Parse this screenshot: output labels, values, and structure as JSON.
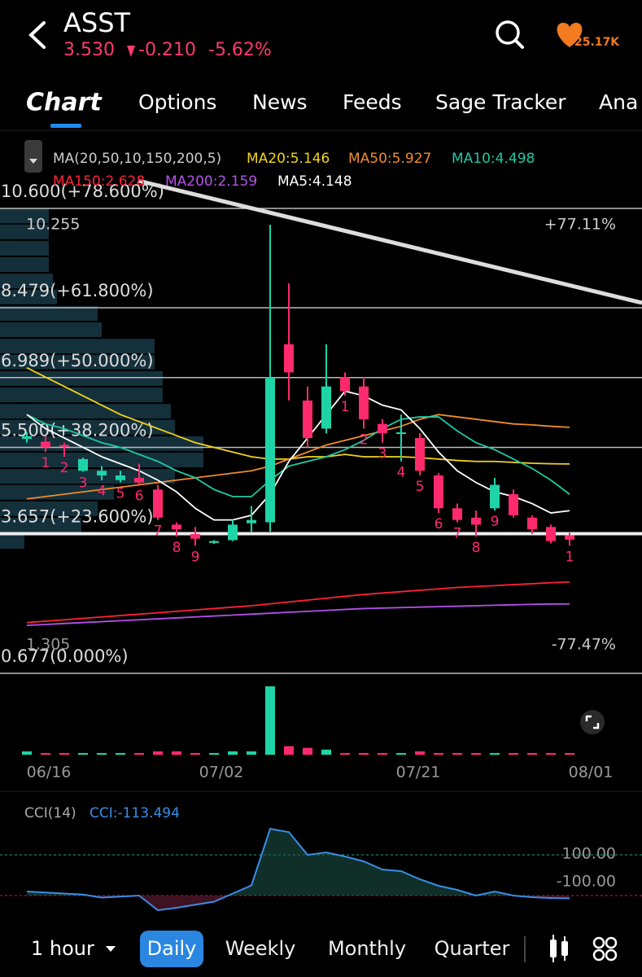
{
  "header": {
    "symbol": "ASST",
    "price": "3.530",
    "change": "-0.210",
    "change_pct": "-5.62%",
    "followers": "25.17K"
  },
  "tabs": [
    "Chart",
    "Options",
    "News",
    "Feeds",
    "Sage Tracker",
    "Ana"
  ],
  "chart": {
    "type": "candlestick",
    "ma_title": "MA(20,50,10,150,200,5)",
    "ma_lines": [
      {
        "label": "MA20:5.146",
        "color": "#f2d31b",
        "values": [
          7.2,
          7.0,
          6.8,
          6.6,
          6.4,
          6.2,
          6.05,
          5.9,
          5.75,
          5.6,
          5.5,
          5.4,
          5.3,
          5.25,
          5.25,
          5.3,
          5.3,
          5.35,
          5.3,
          5.3,
          5.3,
          5.28,
          5.25,
          5.22,
          5.2,
          5.2,
          5.18,
          5.16,
          5.15,
          5.146
        ]
      },
      {
        "label": "MA50:5.927",
        "color": "#f28b2c",
        "values": [
          4.4,
          4.45,
          4.5,
          4.55,
          4.6,
          4.65,
          4.7,
          4.75,
          4.8,
          4.85,
          4.9,
          4.95,
          5.0,
          5.1,
          5.25,
          5.4,
          5.55,
          5.65,
          5.75,
          5.85,
          5.95,
          6.1,
          6.2,
          6.15,
          6.1,
          6.05,
          6.0,
          5.98,
          5.95,
          5.927
        ]
      },
      {
        "label": "MA10:4.498",
        "color": "#1fc9a2",
        "values": [
          6.2,
          6.0,
          5.9,
          5.75,
          5.6,
          5.5,
          5.35,
          5.2,
          5.0,
          4.85,
          4.6,
          4.45,
          4.45,
          4.8,
          5.1,
          5.2,
          5.3,
          5.45,
          5.65,
          5.9,
          6.1,
          6.15,
          6.15,
          5.85,
          5.6,
          5.45,
          5.25,
          5.05,
          4.8,
          4.498
        ]
      },
      {
        "label": "MA150:2.628",
        "color": "#ff2238",
        "values": [
          1.76,
          1.79,
          1.82,
          1.85,
          1.88,
          1.91,
          1.94,
          1.97,
          2.0,
          2.03,
          2.06,
          2.09,
          2.12,
          2.16,
          2.2,
          2.24,
          2.28,
          2.32,
          2.36,
          2.39,
          2.42,
          2.45,
          2.48,
          2.51,
          2.53,
          2.55,
          2.57,
          2.59,
          2.61,
          2.628
        ]
      },
      {
        "label": "MA200:2.159",
        "color": "#b452ea",
        "values": [
          1.7,
          1.72,
          1.74,
          1.76,
          1.78,
          1.8,
          1.82,
          1.84,
          1.86,
          1.88,
          1.9,
          1.92,
          1.94,
          1.96,
          1.98,
          2.0,
          2.02,
          2.04,
          2.06,
          2.07,
          2.08,
          2.09,
          2.1,
          2.11,
          2.12,
          2.13,
          2.14,
          2.15,
          2.155,
          2.159
        ]
      },
      {
        "label": "MA5:4.148",
        "color": "#ffffff",
        "values": [
          6.2,
          5.9,
          5.7,
          5.5,
          5.3,
          5.15,
          5.0,
          4.8,
          4.55,
          4.2,
          3.95,
          3.95,
          4.05,
          4.5,
          5.2,
          5.7,
          6.2,
          6.7,
          6.6,
          6.4,
          6.3,
          5.9,
          5.4,
          5.0,
          4.75,
          4.55,
          4.45,
          4.3,
          4.1,
          4.148
        ]
      }
    ],
    "fib_levels": [
      {
        "value": 10.6,
        "label": "10.600(+78.600%)"
      },
      {
        "value": 8.479,
        "label": "8.479(+61.800%)"
      },
      {
        "value": 6.989,
        "label": "6.989(+50.000%)"
      },
      {
        "value": 5.5,
        "label": "5.500(+38.200%)"
      },
      {
        "value": 3.657,
        "label": "3.657(+23.600%)"
      },
      {
        "value": 0.677,
        "label": "0.677(0.000%)"
      }
    ],
    "high": {
      "value": 10.255,
      "pct": "+77.11%"
    },
    "low": {
      "value": 1.305,
      "pct": "-77.47%"
    },
    "candles": [
      {
        "o": 5.68,
        "h": 5.82,
        "l": 5.6,
        "c": 5.74
      },
      {
        "o": 5.62,
        "h": 5.75,
        "l": 5.4,
        "c": 5.5,
        "label": "1"
      },
      {
        "o": 5.55,
        "h": 5.6,
        "l": 5.3,
        "c": 5.52,
        "label": "2"
      },
      {
        "o": 5.0,
        "h": 5.28,
        "l": 4.98,
        "c": 5.25,
        "label": "3"
      },
      {
        "o": 4.9,
        "h": 5.1,
        "l": 4.8,
        "c": 5.0,
        "label": "4"
      },
      {
        "o": 4.8,
        "h": 5.0,
        "l": 4.75,
        "c": 4.9,
        "label": "5"
      },
      {
        "o": 4.85,
        "h": 5.15,
        "l": 4.7,
        "c": 4.75,
        "label": "6"
      },
      {
        "o": 4.6,
        "h": 4.7,
        "l": 3.95,
        "c": 4.0,
        "label": "7"
      },
      {
        "o": 3.85,
        "h": 3.9,
        "l": 3.6,
        "c": 3.75,
        "label": "8"
      },
      {
        "o": 3.65,
        "h": 3.8,
        "l": 3.4,
        "c": 3.55,
        "label": "9"
      },
      {
        "o": 3.46,
        "h": 3.52,
        "l": 3.44,
        "c": 3.5
      },
      {
        "o": 3.52,
        "h": 3.95,
        "l": 3.5,
        "c": 3.85
      },
      {
        "o": 3.88,
        "h": 4.25,
        "l": 3.7,
        "c": 3.95
      },
      {
        "o": 3.9,
        "h": 10.25,
        "l": 3.7,
        "c": 7.0
      },
      {
        "o": 7.7,
        "h": 9.0,
        "l": 6.5,
        "c": 7.1
      },
      {
        "o": 6.5,
        "h": 6.8,
        "l": 5.5,
        "c": 5.7
      },
      {
        "o": 5.9,
        "h": 7.7,
        "l": 5.8,
        "c": 6.8
      },
      {
        "o": 7.0,
        "h": 7.1,
        "l": 6.6,
        "c": 6.7,
        "label": "1"
      },
      {
        "o": 6.8,
        "h": 7.0,
        "l": 5.9,
        "c": 6.1,
        "label": "2"
      },
      {
        "o": 6.0,
        "h": 6.1,
        "l": 5.6,
        "c": 5.8,
        "label": "3"
      },
      {
        "o": 5.8,
        "h": 6.2,
        "l": 5.2,
        "c": 5.82,
        "label": "4"
      },
      {
        "o": 5.7,
        "h": 5.8,
        "l": 4.9,
        "c": 5.0,
        "label": "5"
      },
      {
        "o": 4.9,
        "h": 4.95,
        "l": 4.1,
        "c": 4.2,
        "label": "6"
      },
      {
        "o": 4.2,
        "h": 4.3,
        "l": 3.9,
        "c": 3.95,
        "label": "7"
      },
      {
        "o": 4.0,
        "h": 4.15,
        "l": 3.6,
        "c": 3.85,
        "label": "8"
      },
      {
        "o": 4.2,
        "h": 4.85,
        "l": 4.15,
        "c": 4.7,
        "label": "9"
      },
      {
        "o": 4.5,
        "h": 4.6,
        "l": 4.0,
        "c": 4.05
      },
      {
        "o": 4.0,
        "h": 4.05,
        "l": 3.65,
        "c": 3.75
      },
      {
        "o": 3.8,
        "h": 3.85,
        "l": 3.45,
        "c": 3.5
      },
      {
        "o": 3.62,
        "h": 3.68,
        "l": 3.4,
        "c": 3.53,
        "label": "1"
      }
    ],
    "volumes": [
      2,
      1,
      1,
      1,
      1,
      1,
      1,
      2,
      2,
      1,
      1,
      2,
      2,
      40,
      5,
      4,
      3,
      1,
      1,
      1,
      1,
      2,
      1,
      1,
      1,
      1,
      1,
      1,
      1,
      1
    ],
    "volume_profile": {
      "prices": [
        10.44,
        10.1,
        9.75,
        9.4,
        9.05,
        8.71,
        8.36,
        8.01,
        7.66,
        7.32,
        6.97,
        6.62,
        6.27,
        5.93,
        5.58,
        5.23,
        4.88,
        4.54,
        4.19,
        3.84,
        3.49
      ],
      "volumes": [
        60,
        60,
        60,
        60,
        65,
        70,
        120,
        125,
        190,
        190,
        200,
        200,
        210,
        215,
        250,
        250,
        215,
        140,
        120,
        100,
        30
      ]
    },
    "dates": [
      "06/16",
      "07/02",
      "07/21",
      "08/01"
    ],
    "cci": {
      "title": "CCI(14)",
      "label": "CCI:-113.494",
      "values": [
        -80,
        -85,
        -90,
        -95,
        -110,
        -105,
        -100,
        -172,
        -160,
        -145,
        -130,
        -90,
        -50,
        228,
        212,
        100,
        112,
        92,
        68,
        28,
        20,
        -20,
        -52,
        -72,
        -100,
        -80,
        -100,
        -108,
        -112,
        -113.494
      ],
      "yticks": [
        {
          "value": 100,
          "label": "100.00"
        },
        {
          "value": -100,
          "label": "-100.00"
        }
      ]
    }
  },
  "toolbar": {
    "interval": "1 hour",
    "periods": [
      "Daily",
      "Weekly",
      "Monthly",
      "Quarter"
    ],
    "selected": 0
  }
}
